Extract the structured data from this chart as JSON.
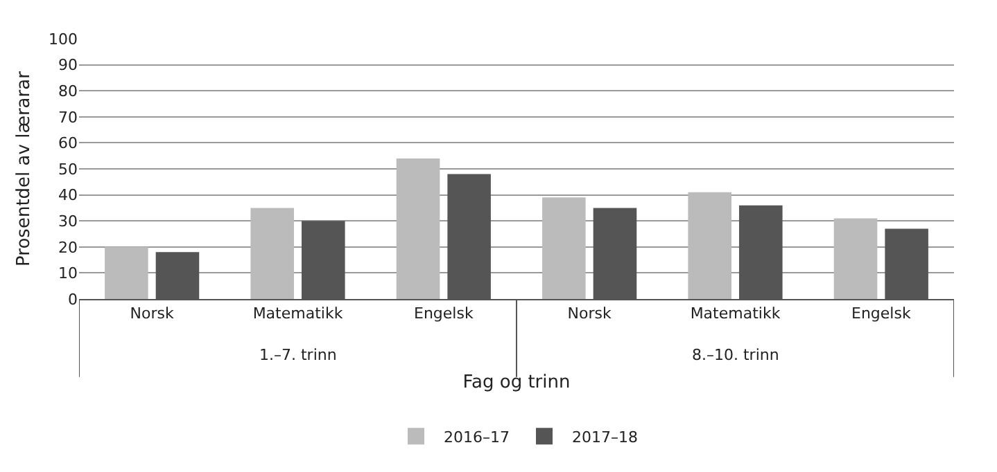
{
  "chart_data": {
    "type": "bar",
    "xlabel": "Fag og trinn",
    "ylabel": "Prosentdel av lærarar",
    "categories": [
      "Norsk",
      "Matematikk",
      "Engelsk",
      "Norsk",
      "Matematikk",
      "Engelsk"
    ],
    "series": [
      {
        "name": "2016–17",
        "color": "#bbbbbb",
        "values": [
          20,
          35,
          54,
          39,
          41,
          31
        ]
      },
      {
        "name": "2017–18",
        "color": "#555555",
        "values": [
          18,
          30,
          48,
          35,
          36,
          27
        ]
      }
    ],
    "annotations": [
      "1.–7. trinn",
      "8.–10. trinn"
    ],
    "ylim": [
      0,
      100
    ],
    "yticks": [
      0,
      10,
      20,
      30,
      40,
      50,
      60,
      70,
      80,
      90,
      100
    ],
    "grid": "y",
    "legend": "bottom"
  }
}
